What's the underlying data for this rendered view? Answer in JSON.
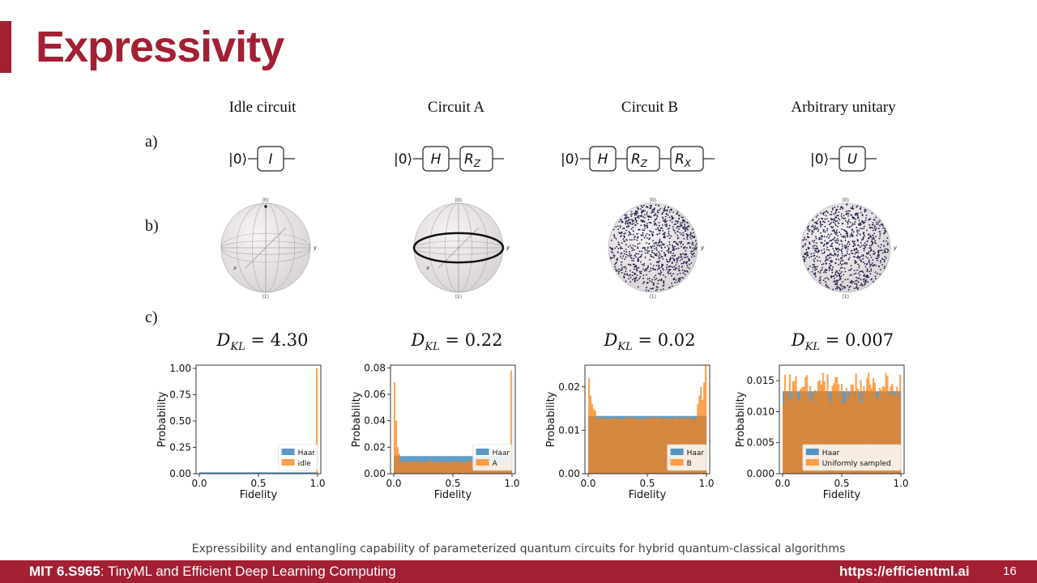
{
  "title": "Expressivity",
  "row_labels": {
    "a": "a)",
    "b": "b)",
    "c": "c)"
  },
  "columns": [
    {
      "title": "Idle circuit",
      "gates": [
        "I"
      ],
      "dkl": "4.30"
    },
    {
      "title": "Circuit A",
      "gates": [
        "H",
        "R_Z"
      ],
      "dkl": "0.22"
    },
    {
      "title": "Circuit B",
      "gates": [
        "H",
        "R_Z",
        "R_X"
      ],
      "dkl": "0.02"
    },
    {
      "title": "Arbitrary unitary",
      "gates": [
        "U"
      ],
      "dkl": "0.007"
    }
  ],
  "circuit_input": "|0⟩",
  "dkl_symbol": "D",
  "dkl_sub": "KL",
  "bloch_labels": {
    "top": "|0⟩",
    "bottom": "|1⟩",
    "x": "x",
    "y": "y"
  },
  "caption": "Expressibility and entangling capability of parameterized quantum circuits for hybrid quantum-classical algorithms",
  "footer": {
    "course_code": "MIT 6.S965",
    "course_name": ": TinyML and Efficient Deep Learning Computing",
    "url": "https://efficientml.ai",
    "page": "16"
  },
  "colors": {
    "haar": "#1f77b4",
    "sample": "#ff7f0e",
    "accent": "#a31f34"
  },
  "chart_data": [
    {
      "type": "bar",
      "xlabel": "Fidelity",
      "ylabel": "Probability",
      "xlim": [
        0,
        1
      ],
      "ylim": [
        0,
        1.03
      ],
      "yticks": [
        "0.00",
        "0.25",
        "0.50",
        "0.75",
        "1.00"
      ],
      "xticks": [
        "0.0",
        "0.5",
        "1.0"
      ],
      "legend": {
        "placement": "lower-right",
        "entries": [
          "Haar",
          "idle"
        ]
      },
      "series": [
        {
          "name": "Haar",
          "values": "uniform ≈0.01 per bin (75 bins)"
        },
        {
          "name": "idle",
          "values": "0 everywhere except last bin = 1.00"
        }
      ],
      "haar_level": 0.0133,
      "sample_spikes": [
        [
          0.993,
          1.0
        ]
      ]
    },
    {
      "type": "bar",
      "xlabel": "Fidelity",
      "ylabel": "Probability",
      "xlim": [
        0,
        1
      ],
      "ylim": [
        0,
        0.082
      ],
      "yticks": [
        "0.00",
        "0.02",
        "0.04",
        "0.06",
        "0.08"
      ],
      "xticks": [
        "0.0",
        "0.5",
        "1.0"
      ],
      "legend": {
        "placement": "lower-right",
        "entries": [
          "Haar",
          "A"
        ]
      },
      "haar_level": 0.0133,
      "sample_level": 0.009,
      "sample_spikes": [
        [
          0.0,
          0.069
        ],
        [
          0.013,
          0.04
        ],
        [
          0.027,
          0.02
        ],
        [
          0.04,
          0.015
        ],
        [
          0.96,
          0.016
        ],
        [
          0.973,
          0.02
        ],
        [
          0.987,
          0.045
        ],
        [
          0.993,
          0.078
        ]
      ]
    },
    {
      "type": "bar",
      "xlabel": "Fidelity",
      "ylabel": "Probability",
      "xlim": [
        0,
        1
      ],
      "ylim": [
        0,
        0.025
      ],
      "yticks": [
        "0.00",
        "0.01",
        "0.02"
      ],
      "xticks": [
        "0.0",
        "0.5",
        "1.0"
      ],
      "legend": {
        "placement": "lower-right",
        "entries": [
          "Haar",
          "B"
        ]
      },
      "haar_level": 0.0133,
      "sample_level": 0.0128,
      "sample_spikes": [
        [
          0.0,
          0.022
        ],
        [
          0.013,
          0.018
        ],
        [
          0.027,
          0.016
        ],
        [
          0.04,
          0.015
        ],
        [
          0.053,
          0.0145
        ],
        [
          0.92,
          0.016
        ],
        [
          0.933,
          0.018
        ],
        [
          0.947,
          0.02
        ],
        [
          0.96,
          0.017
        ],
        [
          0.973,
          0.021
        ],
        [
          0.987,
          0.025
        ]
      ]
    },
    {
      "type": "bar",
      "xlabel": "Fidelity",
      "ylabel": "Probability",
      "xlim": [
        0,
        1
      ],
      "ylim": [
        0,
        0.0175
      ],
      "yticks": [
        "0.000",
        "0.005",
        "0.010",
        "0.015"
      ],
      "xticks": [
        "0.0",
        "0.5",
        "1.0"
      ],
      "legend": {
        "placement": "lower-right",
        "entries": [
          "Haar",
          "Uniformly sampled"
        ]
      },
      "haar_level": 0.0133,
      "sample_level": 0.0138,
      "noise": 0.0025
    }
  ]
}
